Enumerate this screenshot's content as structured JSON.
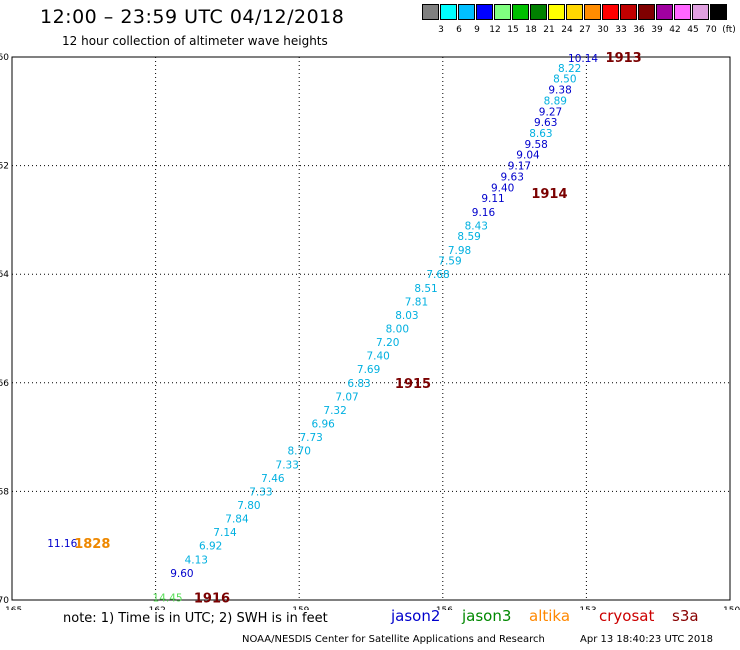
{
  "header": {
    "title": "12:00 – 23:59 UTC 04/12/2018",
    "subtitle": "12 hour collection of altimeter wave heights"
  },
  "colorbar": {
    "colors": [
      "#808080",
      "#00ffff",
      "#00bfff",
      "#0000ff",
      "#80ff80",
      "#00c000",
      "#008000",
      "#ffff00",
      "#ffd700",
      "#ff8c00",
      "#ff0000",
      "#c00000",
      "#800000",
      "#a000a0",
      "#ff66ff",
      "#e0a0e0",
      "#000000"
    ],
    "labels": [
      "3",
      "6",
      "9",
      "12",
      "15",
      "18",
      "21",
      "24",
      "27",
      "30",
      "33",
      "36",
      "39",
      "42",
      "45",
      "70",
      "(ft)"
    ],
    "unit": "(ft)"
  },
  "chart_data": {
    "type": "scatter",
    "title": "12:00 – 23:59 UTC 04/12/2018",
    "subtitle": "12 hour collection of altimeter wave heights",
    "xlim": [
      -165,
      -150
    ],
    "ylim": [
      -70,
      -60
    ],
    "x_ticks": [
      -165,
      -162,
      -159,
      -156,
      -153,
      -150
    ],
    "y_ticks": [
      -60,
      -62,
      -64,
      -66,
      -68,
      -70
    ],
    "grid": true,
    "colors": {
      "blue": "#0000cc",
      "cyan": "#00b0e0",
      "dark_red": "#7a0000",
      "orange": "#ee8800",
      "green": "#55dd55"
    },
    "points": [
      {
        "x": -153.07,
        "y": -60.02,
        "label": "10.14",
        "color": "blue"
      },
      {
        "x": -153.35,
        "y": -60.2,
        "label": "8.22",
        "color": "cyan"
      },
      {
        "x": -153.45,
        "y": -60.4,
        "label": "8.50",
        "color": "cyan"
      },
      {
        "x": -153.55,
        "y": -60.6,
        "label": "9.38",
        "color": "blue"
      },
      {
        "x": -153.65,
        "y": -60.8,
        "label": "8.89",
        "color": "cyan"
      },
      {
        "x": -153.75,
        "y": -61.0,
        "label": "9.27",
        "color": "blue"
      },
      {
        "x": -153.85,
        "y": -61.2,
        "label": "9.63",
        "color": "blue"
      },
      {
        "x": -153.95,
        "y": -61.4,
        "label": "8.63",
        "color": "cyan"
      },
      {
        "x": -154.05,
        "y": -61.6,
        "label": "9.58",
        "color": "blue"
      },
      {
        "x": -154.22,
        "y": -61.8,
        "label": "9.04",
        "color": "blue"
      },
      {
        "x": -154.4,
        "y": -62.0,
        "label": "9.17",
        "color": "blue"
      },
      {
        "x": -154.55,
        "y": -62.2,
        "label": "9.63",
        "color": "blue"
      },
      {
        "x": -154.75,
        "y": -62.4,
        "label": "9.40",
        "color": "blue"
      },
      {
        "x": -154.95,
        "y": -62.6,
        "label": "9.11",
        "color": "blue"
      },
      {
        "x": -155.15,
        "y": -62.85,
        "label": "9.16",
        "color": "blue"
      },
      {
        "x": -155.3,
        "y": -63.1,
        "label": "8.43",
        "color": "cyan"
      },
      {
        "x": -155.45,
        "y": -63.3,
        "label": "8.59",
        "color": "cyan"
      },
      {
        "x": -155.65,
        "y": -63.55,
        "label": "7.98",
        "color": "cyan"
      },
      {
        "x": -155.85,
        "y": -63.75,
        "label": "7.59",
        "color": "cyan"
      },
      {
        "x": -156.1,
        "y": -64.0,
        "label": "7.68",
        "color": "cyan"
      },
      {
        "x": -156.35,
        "y": -64.25,
        "label": "8.51",
        "color": "cyan"
      },
      {
        "x": -156.55,
        "y": -64.5,
        "label": "7.81",
        "color": "cyan"
      },
      {
        "x": -156.75,
        "y": -64.75,
        "label": "8.03",
        "color": "cyan"
      },
      {
        "x": -156.95,
        "y": -65.0,
        "label": "8.00",
        "color": "cyan"
      },
      {
        "x": -157.15,
        "y": -65.25,
        "label": "7.20",
        "color": "cyan"
      },
      {
        "x": -157.35,
        "y": -65.5,
        "label": "7.40",
        "color": "cyan"
      },
      {
        "x": -157.55,
        "y": -65.75,
        "label": "7.69",
        "color": "cyan"
      },
      {
        "x": -157.75,
        "y": -66.0,
        "label": "6.83",
        "color": "cyan"
      },
      {
        "x": -158.0,
        "y": -66.25,
        "label": "7.07",
        "color": "cyan"
      },
      {
        "x": -158.25,
        "y": -66.5,
        "label": "7.32",
        "color": "cyan"
      },
      {
        "x": -158.5,
        "y": -66.75,
        "label": "6.96",
        "color": "cyan"
      },
      {
        "x": -158.75,
        "y": -67.0,
        "label": "7.73",
        "color": "cyan"
      },
      {
        "x": -159.0,
        "y": -67.25,
        "label": "8.70",
        "color": "cyan"
      },
      {
        "x": -159.25,
        "y": -67.5,
        "label": "7.33",
        "color": "cyan"
      },
      {
        "x": -159.55,
        "y": -67.75,
        "label": "7.46",
        "color": "cyan"
      },
      {
        "x": -159.8,
        "y": -68.0,
        "label": "7.33",
        "color": "cyan"
      },
      {
        "x": -160.05,
        "y": -68.25,
        "label": "7.80",
        "color": "cyan"
      },
      {
        "x": -160.3,
        "y": -68.5,
        "label": "7.84",
        "color": "cyan"
      },
      {
        "x": -160.55,
        "y": -68.75,
        "label": "7.14",
        "color": "cyan"
      },
      {
        "x": -160.85,
        "y": -69.0,
        "label": "6.92",
        "color": "cyan"
      },
      {
        "x": -161.15,
        "y": -69.25,
        "label": "4.13",
        "color": "cyan"
      },
      {
        "x": -161.45,
        "y": -69.5,
        "label": "9.60",
        "color": "blue"
      },
      {
        "x": -163.95,
        "y": -68.95,
        "label": "11.16",
        "color": "blue"
      },
      {
        "x": -161.75,
        "y": -69.95,
        "label": "14.45",
        "color": "green"
      }
    ],
    "annotations": [
      {
        "x": -152.6,
        "y": -60.0,
        "label": "1913",
        "color": "dark_red"
      },
      {
        "x": -154.15,
        "y": -62.5,
        "label": "1914",
        "color": "dark_red"
      },
      {
        "x": -157.0,
        "y": -66.0,
        "label": "1915",
        "color": "dark_red"
      },
      {
        "x": -163.7,
        "y": -68.95,
        "label": "1828",
        "color": "orange"
      },
      {
        "x": -161.2,
        "y": -69.95,
        "label": "1916",
        "color": "dark_red"
      }
    ]
  },
  "footer": {
    "note": "note: 1) Time is in UTC; 2) SWH is in feet",
    "satellites": [
      {
        "name": "jason2",
        "color": "#0000cc"
      },
      {
        "name": "jason3",
        "color": "#008800"
      },
      {
        "name": "altika",
        "color": "#ff8800"
      },
      {
        "name": "cryosat",
        "color": "#cc0000"
      },
      {
        "name": "s3a",
        "color": "#880000"
      }
    ],
    "credit": "NOAA/NESDIS Center for Satellite Applications and Research",
    "timestamp": "Apr 13 18:40:23 UTC 2018"
  }
}
